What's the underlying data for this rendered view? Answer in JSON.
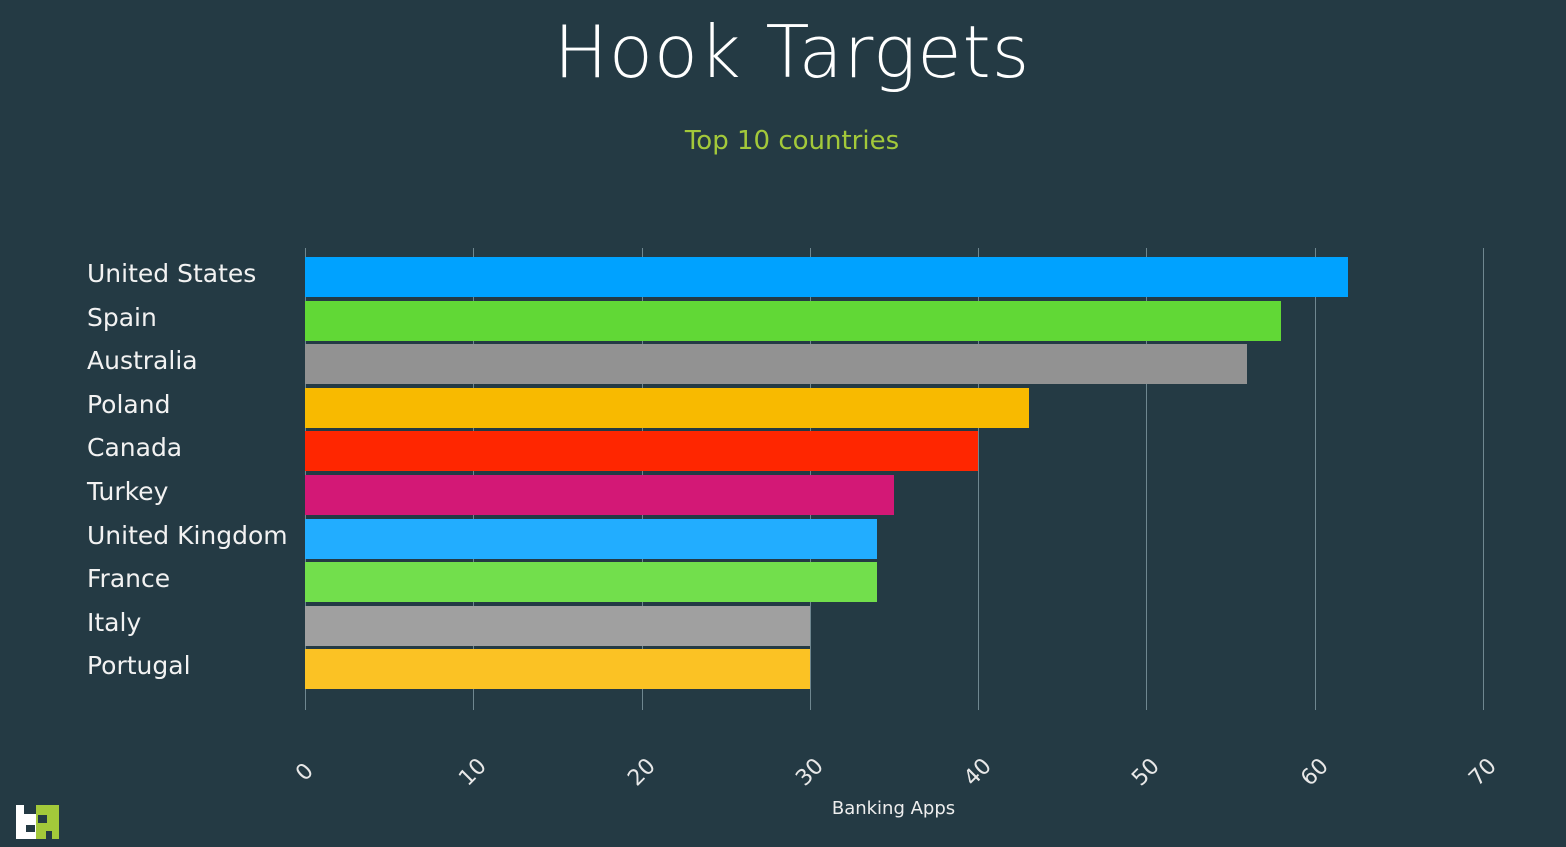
{
  "chart_data": {
    "type": "bar",
    "orientation": "horizontal",
    "title": "Hook Targets",
    "subtitle": "Top 10 countries",
    "xlabel": "Banking Apps",
    "ylabel": "",
    "xlim": [
      0,
      70
    ],
    "xticks": [
      "0",
      "10",
      "20",
      "30",
      "40",
      "50",
      "60",
      "70"
    ],
    "grid": true,
    "legend": "none",
    "categories": [
      "United States",
      "Spain",
      "Australia",
      "Poland",
      "Canada",
      "Turkey",
      "United Kingdom",
      "France",
      "Italy",
      "Portugal"
    ],
    "values": [
      62,
      58,
      56,
      43,
      40,
      35,
      34,
      34,
      30,
      30
    ],
    "colors": [
      "#00a2ff",
      "#61d836",
      "#929292",
      "#f8ba00",
      "#ff2600",
      "#d31876",
      "#22adff",
      "#72df4c",
      "#a0a0a0",
      "#fbc224"
    ]
  },
  "colors": {
    "background": "#243a44",
    "subtitle": "#a3c93a",
    "logo_left": "#ffffff",
    "logo_right": "#a3c93a"
  }
}
